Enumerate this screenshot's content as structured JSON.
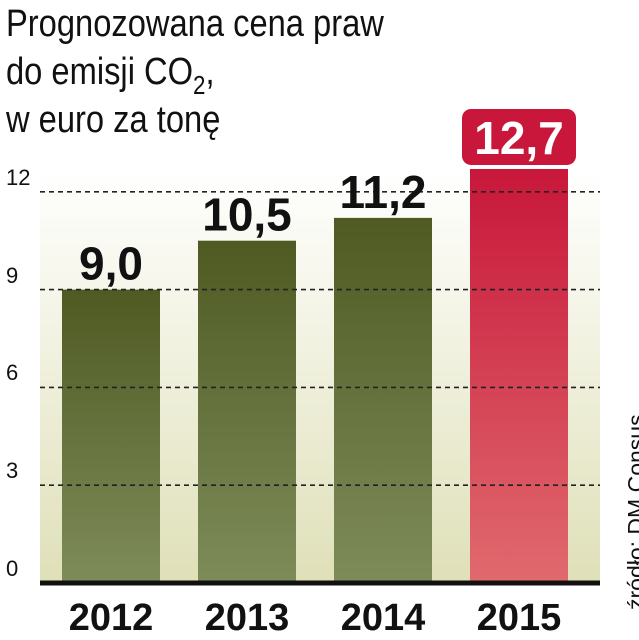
{
  "title": {
    "line1": "Prognozowana cena praw",
    "line2_main": "do emisji CO",
    "line2_sub": "2",
    "line2_end": ",",
    "line3": "w euro za tonę"
  },
  "source": "źródło: DM Consus",
  "colors": {
    "bar_top": "#4f5a22",
    "bar_bottom": "#7e8c5a",
    "highlight_top": "#c8173a",
    "highlight_bottom": "#e06a6e",
    "background_top": "#ffffff",
    "background_bottom": "#dfe0b8"
  },
  "chart_data": {
    "type": "bar",
    "categories": [
      "2012",
      "2013",
      "2014",
      "2015"
    ],
    "values": [
      9.0,
      10.5,
      11.2,
      12.7
    ],
    "value_labels": [
      "9,0",
      "10,5",
      "11,2",
      "12,7"
    ],
    "highlight_index": 3,
    "ylim": [
      0,
      13
    ],
    "yticks": [
      0,
      3,
      6,
      9,
      12
    ],
    "grid": true,
    "xlabel": "",
    "ylabel": ""
  }
}
